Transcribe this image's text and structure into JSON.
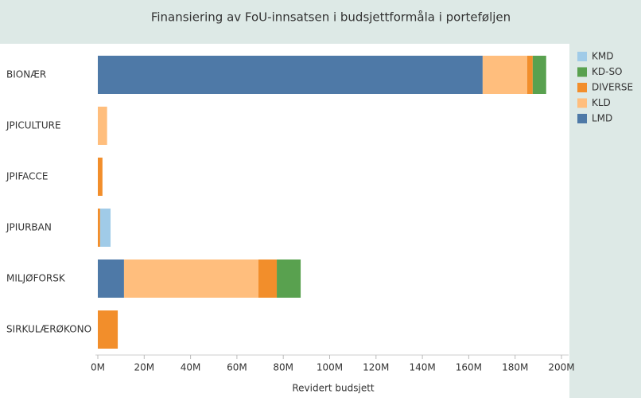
{
  "chart_data": {
    "type": "stacked-bar-horizontal",
    "title": "Finansiering av FoU-innsatsen i budsjettformåla i porteføljen",
    "x_label": "Revidert budsjett",
    "categories": [
      "BIONÆR",
      "JPICULTURE",
      "JPIFACCE",
      "JPIURBAN",
      "MILJØFORSK",
      "SIRKULÆRØKONO"
    ],
    "series": [
      {
        "name": "LMD",
        "color": "#4e79a7",
        "values": [
          166,
          null,
          null,
          null,
          11.3,
          null
        ]
      },
      {
        "name": "KLD",
        "color": "#ffbe7d",
        "values": [
          19.2,
          4,
          null,
          null,
          58,
          null
        ]
      },
      {
        "name": "DIVERSE",
        "color": "#f28e2b",
        "values": [
          2.4,
          null,
          2,
          1,
          7.9,
          8.6
        ]
      },
      {
        "name": "KD-SO",
        "color": "#59a14f",
        "values": [
          5.8,
          null,
          null,
          null,
          10.3,
          null
        ]
      },
      {
        "name": "KMD",
        "color": "#a0cbe8",
        "values": [
          null,
          null,
          null,
          4.5,
          null,
          null
        ]
      }
    ],
    "legend_order": [
      "KMD",
      "KD-SO",
      "DIVERSE",
      "KLD",
      "LMD"
    ],
    "xlim": [
      0,
      200
    ],
    "xticks": [
      {
        "value": 0,
        "label": "0M"
      },
      {
        "value": 20,
        "label": "20M"
      },
      {
        "value": 40,
        "label": "40M"
      },
      {
        "value": 60,
        "label": "60M"
      },
      {
        "value": 80,
        "label": "80M"
      },
      {
        "value": 100,
        "label": "100M"
      },
      {
        "value": 120,
        "label": "120M"
      },
      {
        "value": 140,
        "label": "140M"
      },
      {
        "value": 160,
        "label": "160M"
      },
      {
        "value": 180,
        "label": "180M"
      },
      {
        "value": 200,
        "label": "200M"
      }
    ]
  }
}
